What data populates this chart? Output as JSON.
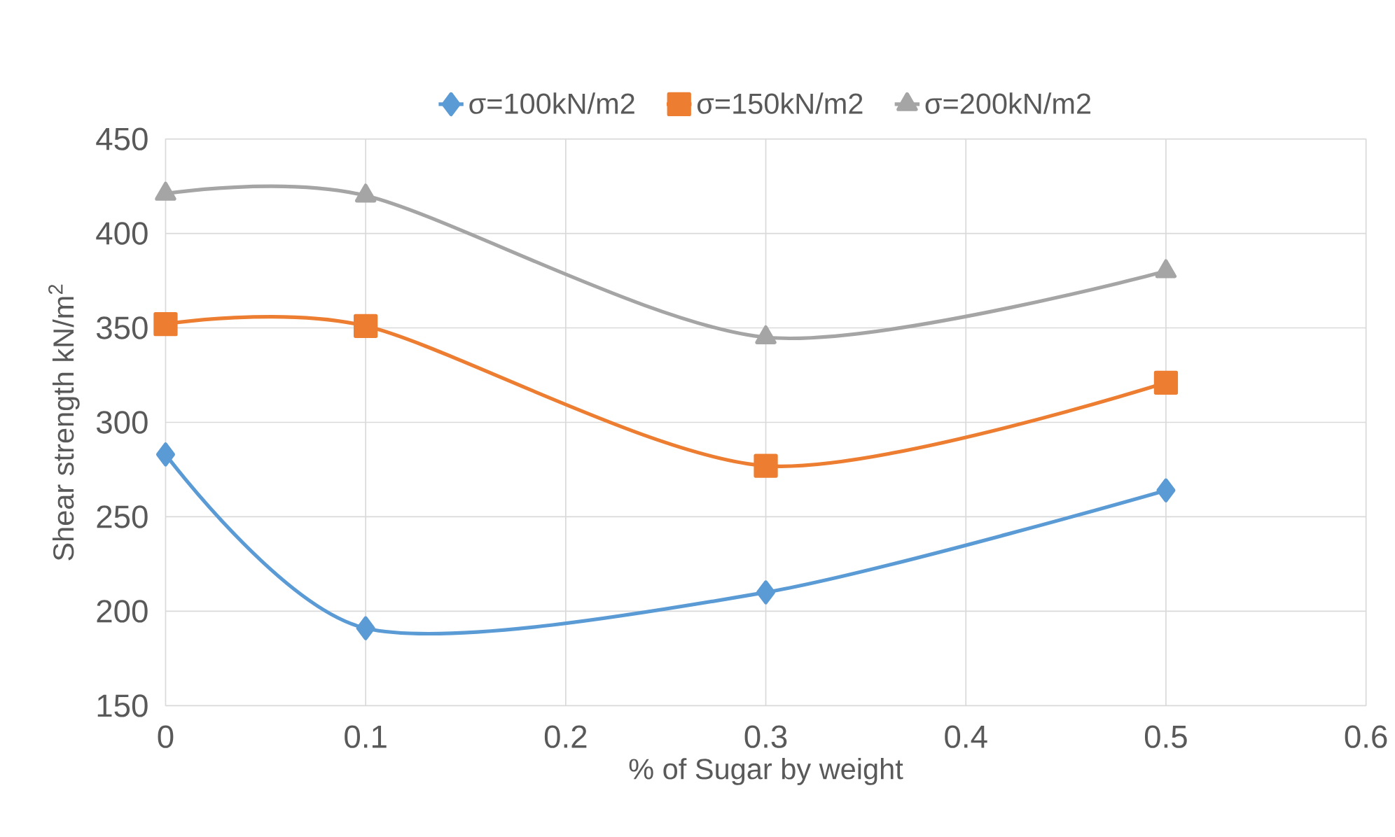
{
  "chart_data": {
    "type": "line",
    "xlabel": "% of Sugar by weight",
    "ylabel": "Shear strength kN/m$^{2}$",
    "x": [
      0,
      0.1,
      0.3,
      0.5
    ],
    "series": [
      {
        "name": "σ=100kN/m2",
        "color": "#5b9bd5",
        "marker": "diamond",
        "values": [
          283,
          191,
          210,
          264
        ]
      },
      {
        "name": "σ=150kN/m2",
        "color": "#ed7d31",
        "marker": "square",
        "values": [
          352,
          351,
          277,
          321
        ]
      },
      {
        "name": "σ=200kN/m2",
        "color": "#a5a5a5",
        "marker": "triangle",
        "values": [
          421,
          420,
          345,
          380
        ]
      }
    ],
    "xlim": [
      0,
      0.6
    ],
    "xticks": [
      0,
      0.1,
      0.2,
      0.3,
      0.4,
      0.5,
      0.6
    ],
    "ylim": [
      150,
      450
    ],
    "yticks": [
      150,
      200,
      250,
      300,
      350,
      400,
      450
    ],
    "grid": true,
    "legend": "top",
    "line_style": "solid"
  }
}
